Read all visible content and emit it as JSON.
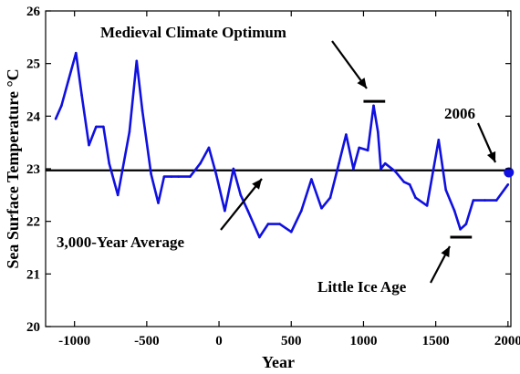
{
  "chart_data": {
    "type": "line",
    "title": "",
    "xlabel": "Year",
    "ylabel": "Sea Surface Temperature °C",
    "xlim": [
      -1200,
      2020
    ],
    "ylim": [
      20,
      26
    ],
    "x_ticks": [
      -1000,
      -500,
      0,
      500,
      1000,
      1500,
      2000
    ],
    "y_ticks": [
      20,
      21,
      22,
      23,
      24,
      25,
      26
    ],
    "grid": false,
    "series": [
      {
        "color": "#1010e0",
        "x": [
          -1130,
          -1090,
          -1040,
          -990,
          -950,
          -900,
          -850,
          -800,
          -760,
          -700,
          -620,
          -570,
          -530,
          -470,
          -420,
          -380,
          -330,
          -280,
          -200,
          -130,
          -70,
          -20,
          40,
          100,
          150,
          200,
          280,
          340,
          420,
          500,
          570,
          640,
          710,
          770,
          830,
          880,
          930,
          970,
          1030,
          1070,
          1100,
          1120,
          1150,
          1220,
          1280,
          1320,
          1360,
          1440,
          1520,
          1570,
          1630,
          1670,
          1710,
          1760,
          1840,
          1920,
          2000
        ],
        "y": [
          23.95,
          24.2,
          24.7,
          25.2,
          24.4,
          23.45,
          23.8,
          23.8,
          23.1,
          22.5,
          23.7,
          25.05,
          24.1,
          22.9,
          22.35,
          22.85,
          22.85,
          22.85,
          22.85,
          23.1,
          23.4,
          22.9,
          22.2,
          23.0,
          22.5,
          22.2,
          21.7,
          21.95,
          21.95,
          21.8,
          22.2,
          22.8,
          22.25,
          22.45,
          23.1,
          23.65,
          23.0,
          23.4,
          23.35,
          24.2,
          23.7,
          23.0,
          23.1,
          22.95,
          22.75,
          22.7,
          22.45,
          22.3,
          23.55,
          22.6,
          22.2,
          21.85,
          21.95,
          22.4,
          22.4,
          22.4,
          22.7
        ]
      }
    ],
    "reference_line": {
      "label": "3,000-Year Average",
      "value": 22.97,
      "color": "#000000"
    },
    "highlight_point": {
      "label": "2006",
      "x": 2006,
      "y": 22.93,
      "color": "#1010e0"
    },
    "annotations": [
      {
        "text": "Medieval Climate Optimum",
        "bar_x": [
          1000,
          1150
        ],
        "bar_y": 24.28
      },
      {
        "text": "Little Ice Age",
        "bar_x": [
          1600,
          1750
        ],
        "bar_y": 21.7
      }
    ]
  }
}
